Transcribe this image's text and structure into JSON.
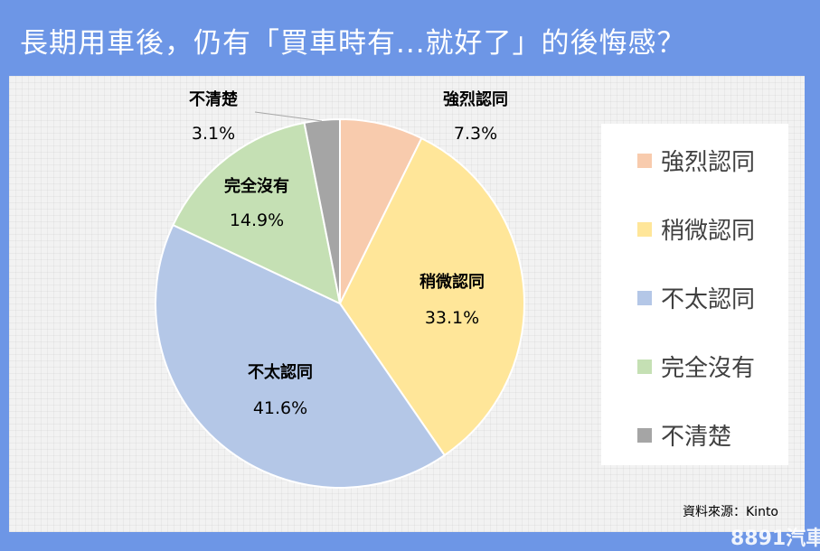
{
  "title": "長期用車後，仍有「買車時有...就好了」的後悔感？",
  "source": "資料來源：Kinto",
  "watermark": "8891汽車",
  "chart_data": {
    "type": "pie",
    "title": "長期用車後，仍有「買車時有...就好了」的後悔感？",
    "legend_position": "right",
    "slices": [
      {
        "label": "強烈認同",
        "value": 7.3,
        "display": "7.3%",
        "color": "#f8cbad"
      },
      {
        "label": "稍微認同",
        "value": 33.1,
        "display": "33.1%",
        "color": "#ffe699"
      },
      {
        "label": "不太認同",
        "value": 41.6,
        "display": "41.6%",
        "color": "#b4c7e7"
      },
      {
        "label": "完全沒有",
        "value": 14.9,
        "display": "14.9%",
        "color": "#c5e0b4"
      },
      {
        "label": "不清楚",
        "value": 3.1,
        "display": "3.1%",
        "color": "#a5a5a5"
      }
    ]
  }
}
